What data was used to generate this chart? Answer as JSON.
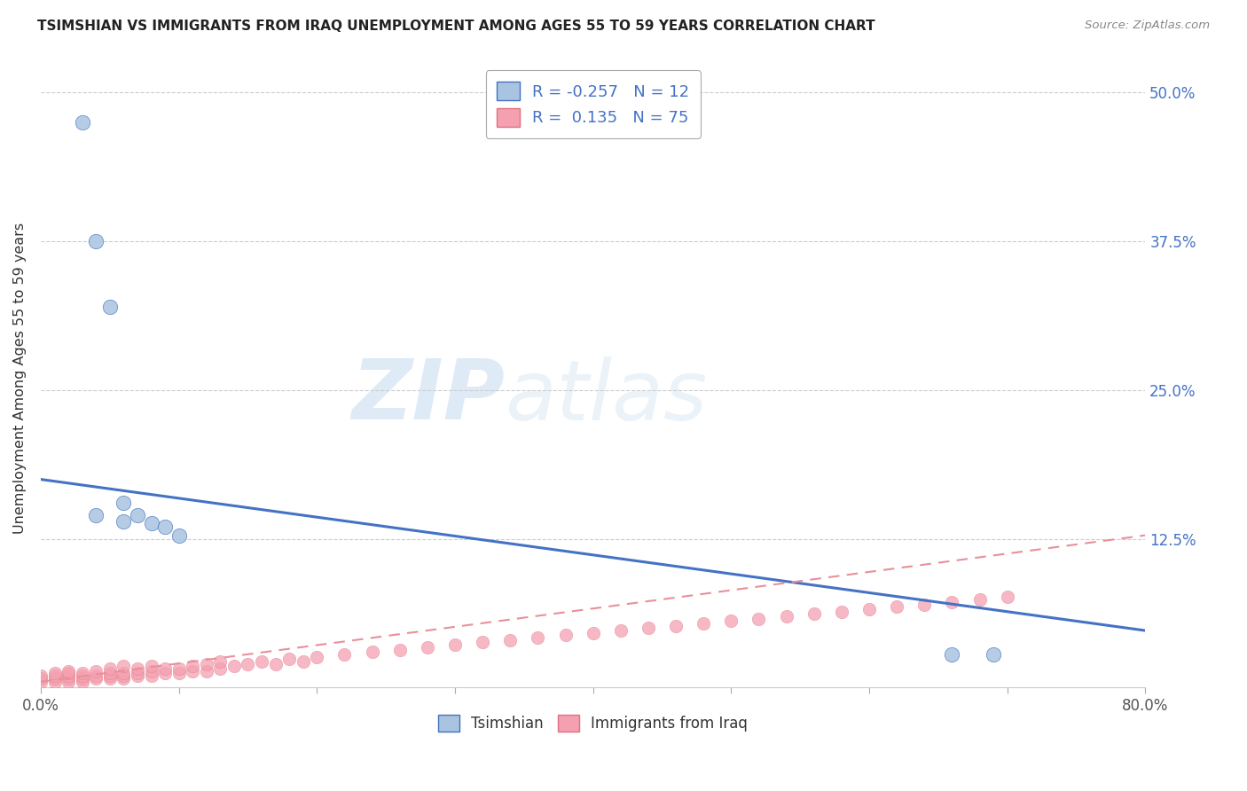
{
  "title": "TSIMSHIAN VS IMMIGRANTS FROM IRAQ UNEMPLOYMENT AMONG AGES 55 TO 59 YEARS CORRELATION CHART",
  "source": "Source: ZipAtlas.com",
  "ylabel": "Unemployment Among Ages 55 to 59 years",
  "legend_label1": "Tsimshian",
  "legend_label2": "Immigrants from Iraq",
  "R1": -0.257,
  "N1": 12,
  "R2": 0.135,
  "N2": 75,
  "color_tsimshian": "#a8c4e0",
  "color_iraq": "#f4a0b0",
  "color_line1": "#4472c4",
  "color_line2": "#e8909a",
  "tsimshian_x": [
    0.03,
    0.04,
    0.05,
    0.06,
    0.07,
    0.08,
    0.09,
    0.1,
    0.66,
    0.69,
    0.04,
    0.06
  ],
  "tsimshian_y": [
    0.475,
    0.375,
    0.32,
    0.155,
    0.145,
    0.138,
    0.135,
    0.128,
    0.028,
    0.028,
    0.145,
    0.14
  ],
  "iraq_x": [
    0.0,
    0.0,
    0.0,
    0.01,
    0.01,
    0.01,
    0.01,
    0.02,
    0.02,
    0.02,
    0.02,
    0.02,
    0.03,
    0.03,
    0.03,
    0.03,
    0.04,
    0.04,
    0.04,
    0.05,
    0.05,
    0.05,
    0.05,
    0.06,
    0.06,
    0.06,
    0.06,
    0.07,
    0.07,
    0.07,
    0.08,
    0.08,
    0.08,
    0.09,
    0.09,
    0.1,
    0.1,
    0.11,
    0.11,
    0.12,
    0.12,
    0.13,
    0.13,
    0.14,
    0.15,
    0.16,
    0.17,
    0.18,
    0.19,
    0.2,
    0.22,
    0.24,
    0.26,
    0.28,
    0.3,
    0.32,
    0.34,
    0.36,
    0.38,
    0.4,
    0.42,
    0.44,
    0.46,
    0.48,
    0.5,
    0.52,
    0.54,
    0.56,
    0.58,
    0.6,
    0.62,
    0.64,
    0.66,
    0.68,
    0.7
  ],
  "iraq_y": [
    0.005,
    0.008,
    0.01,
    0.005,
    0.008,
    0.01,
    0.012,
    0.005,
    0.008,
    0.01,
    0.012,
    0.014,
    0.005,
    0.008,
    0.01,
    0.012,
    0.008,
    0.01,
    0.014,
    0.008,
    0.01,
    0.012,
    0.016,
    0.008,
    0.01,
    0.012,
    0.018,
    0.01,
    0.012,
    0.016,
    0.01,
    0.014,
    0.018,
    0.012,
    0.016,
    0.012,
    0.016,
    0.014,
    0.018,
    0.014,
    0.02,
    0.016,
    0.022,
    0.018,
    0.02,
    0.022,
    0.02,
    0.024,
    0.022,
    0.026,
    0.028,
    0.03,
    0.032,
    0.034,
    0.036,
    0.038,
    0.04,
    0.042,
    0.044,
    0.046,
    0.048,
    0.05,
    0.052,
    0.054,
    0.056,
    0.058,
    0.06,
    0.062,
    0.064,
    0.066,
    0.068,
    0.07,
    0.072,
    0.074,
    0.076
  ],
  "xlim": [
    0.0,
    0.8
  ],
  "ylim": [
    0.0,
    0.52
  ],
  "yticks": [
    0.125,
    0.25,
    0.375,
    0.5
  ],
  "ytick_labels": [
    "12.5%",
    "25.0%",
    "37.5%",
    "50.0%"
  ],
  "xtick_positions": [
    0.0,
    0.1,
    0.2,
    0.3,
    0.4,
    0.5,
    0.6,
    0.7,
    0.8
  ],
  "line1_start_y": 0.175,
  "line1_end_y": 0.048,
  "line2_start_y": 0.005,
  "line2_end_y": 0.128
}
